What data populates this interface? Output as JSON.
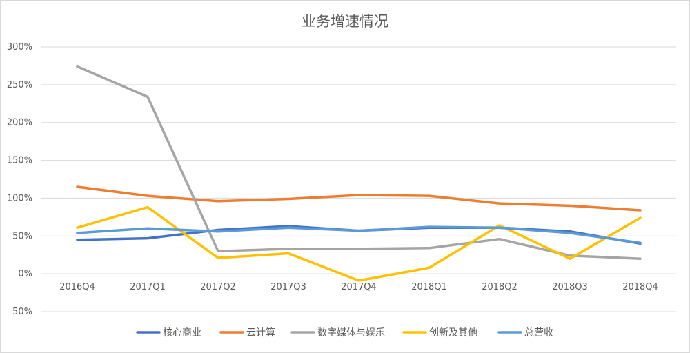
{
  "chart_data": {
    "type": "line",
    "title": "业务增速情况",
    "xlabel": "",
    "ylabel": "",
    "ylim": [
      -50,
      300
    ],
    "y_ticks": [
      -50,
      0,
      50,
      100,
      150,
      200,
      250,
      300
    ],
    "y_tick_labels": [
      "-50%",
      "0%",
      "50%",
      "100%",
      "150%",
      "200%",
      "250%",
      "300%"
    ],
    "grid": true,
    "legend_position": "bottom",
    "categories": [
      "2016Q4",
      "2017Q1",
      "2017Q2",
      "2017Q3",
      "2017Q4",
      "2018Q1",
      "2018Q2",
      "2018Q3",
      "2018Q4"
    ],
    "series": [
      {
        "name": "核心商业",
        "color": "#4472c4",
        "values": [
          45,
          47,
          58,
          63,
          57,
          61,
          61,
          56,
          40
        ]
      },
      {
        "name": "云计算",
        "color": "#ed7d31",
        "values": [
          115,
          103,
          96,
          99,
          104,
          103,
          93,
          90,
          84
        ]
      },
      {
        "name": "数字媒体与娱乐",
        "color": "#a5a5a5",
        "values": [
          274,
          234,
          30,
          33,
          33,
          34,
          46,
          24,
          20
        ]
      },
      {
        "name": "创新及其他",
        "color": "#ffc000",
        "values": [
          61,
          88,
          21,
          27,
          -9,
          8,
          64,
          20,
          74
        ]
      },
      {
        "name": "总营收",
        "color": "#5b9bd5",
        "values": [
          54,
          60,
          56,
          61,
          57,
          62,
          61,
          54,
          41
        ]
      }
    ]
  }
}
